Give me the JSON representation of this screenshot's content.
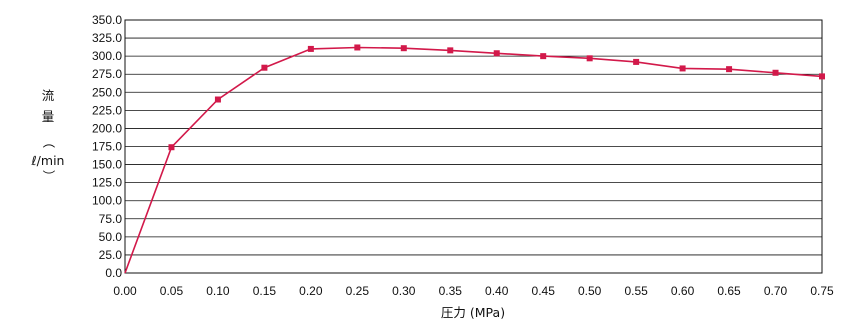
{
  "chart_data": {
    "type": "line",
    "xlabel": "圧力 (MPa)",
    "ylabel_chars": [
      "流",
      "量",
      "（",
      "ℓ/min",
      "）"
    ],
    "xlim": [
      0,
      0.75
    ],
    "ylim": [
      0,
      350
    ],
    "x_ticks": [
      "0.00",
      "0.05",
      "0.10",
      "0.15",
      "0.20",
      "0.25",
      "0.30",
      "0.35",
      "0.40",
      "0.45",
      "0.50",
      "0.55",
      "0.60",
      "0.65",
      "0.70",
      "0.75"
    ],
    "y_ticks": [
      "0.0",
      "25.0",
      "50.0",
      "75.0",
      "100.0",
      "125.0",
      "150.0",
      "175.0",
      "200.0",
      "225.0",
      "250.0",
      "275.0",
      "300.0",
      "325.0",
      "350.0"
    ],
    "grid": "horizontal",
    "colors": {
      "series": "#d2194a",
      "grid": "#111111"
    },
    "series": [
      {
        "x": [
          0.0,
          0.05,
          0.1,
          0.15,
          0.2,
          0.25,
          0.3,
          0.35,
          0.4,
          0.45,
          0.5,
          0.55,
          0.6,
          0.65,
          0.7,
          0.75
        ],
        "y": [
          0.0,
          174.0,
          240.0,
          284.0,
          310.0,
          312.0,
          311.0,
          308.0,
          304.0,
          300.0,
          297.0,
          292.0,
          283.0,
          282.0,
          277.0,
          272.0
        ],
        "markers": [
          false,
          true,
          true,
          true,
          true,
          true,
          true,
          true,
          true,
          true,
          true,
          true,
          true,
          true,
          true,
          true
        ]
      }
    ]
  }
}
